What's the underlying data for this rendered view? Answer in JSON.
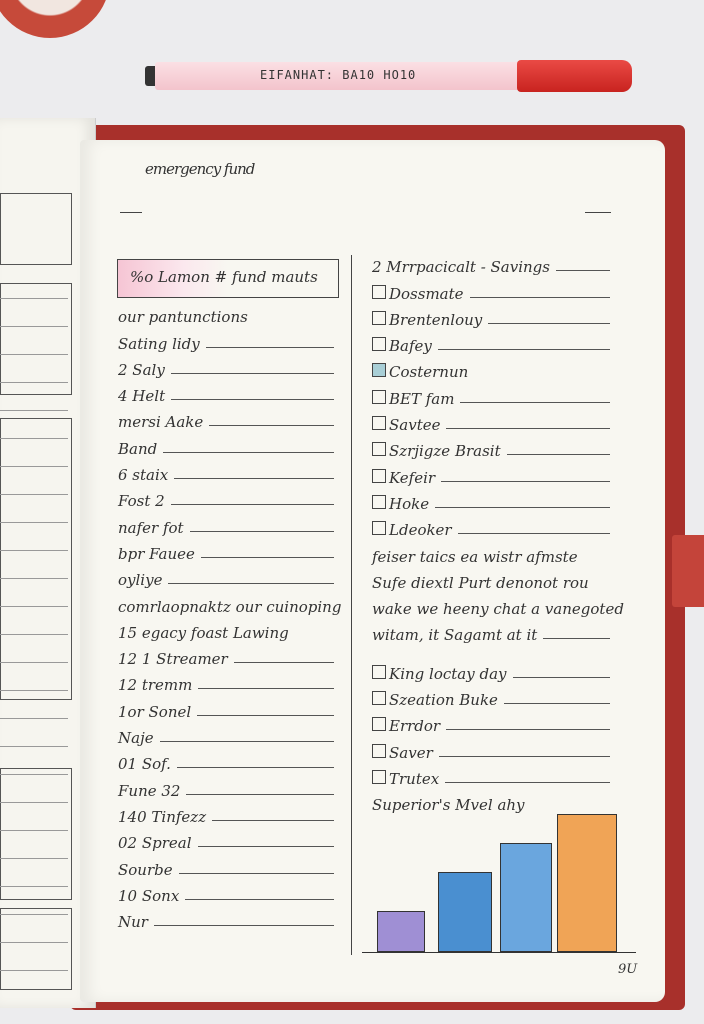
{
  "pen": {
    "label": "EIFANHAT: BA10 HO10",
    "body_color": "#f5c9cf",
    "cap_color": "#d92f2a"
  },
  "journal": {
    "cover_color": "#a8302b",
    "title": "emergency fund"
  },
  "left_column": {
    "header": "%o  Lamon # fund mauts",
    "subheader": "our pantunctions",
    "items_a": [
      "Sating lidy",
      "2 Saly",
      "4 Helt",
      "mersi Aake",
      "Band",
      "6 staix",
      "Fost 2",
      "nafer fot",
      "bpr Fauee",
      "oyliye"
    ],
    "note_1": "comrlaopnaktz our cuinoping",
    "note_2": "15 egacy foast Lawing",
    "items_b": [
      "12 1 Streamer",
      "12 tremm",
      "1or Sonel",
      "Naje",
      "01 Sof.",
      "Fune 32",
      "140 Tinfezz",
      "02 Spreal",
      "Sourbe",
      "10 Sonx",
      "Nur"
    ]
  },
  "right_column": {
    "heading": "2 Mrrpacicalt - Savings",
    "checklist_a": [
      {
        "label": "Dossmate",
        "checked": false
      },
      {
        "label": "Brentenlouy",
        "checked": false
      },
      {
        "label": "Bafey",
        "checked": false
      },
      {
        "label": "Costernun",
        "checked": true
      },
      {
        "label": "BET fam",
        "checked": false
      },
      {
        "label": "Savtee",
        "checked": false
      },
      {
        "label": "Szrjigze Brasit",
        "checked": false
      },
      {
        "label": "Kefeir",
        "checked": false
      },
      {
        "label": "Hoke",
        "checked": false
      },
      {
        "label": "Ldeoker",
        "checked": false
      }
    ],
    "paragraph": [
      "feiser taics ea wistr afmste",
      "Sufe diextl Purt denonot rou",
      "wake we heeny chat a vanegoted",
      "witam, it Sagamt at it"
    ],
    "checklist_b": [
      {
        "label": "King loctay day",
        "checked": false
      },
      {
        "label": "Szeation Buke",
        "checked": false
      },
      {
        "label": "Errdor",
        "checked": false
      },
      {
        "label": "Saver",
        "checked": false
      },
      {
        "label": "Trutex",
        "checked": false
      }
    ],
    "caption": "Superior's Mvel ahy",
    "bars": [
      {
        "value": 0.29,
        "color": "#9f8fd4"
      },
      {
        "value": 0.57,
        "color": "#4a8fd0"
      },
      {
        "value": 0.79,
        "color": "#6aa6de"
      },
      {
        "value": 1.0,
        "color": "#f0a456"
      }
    ]
  },
  "page_number": "9U"
}
